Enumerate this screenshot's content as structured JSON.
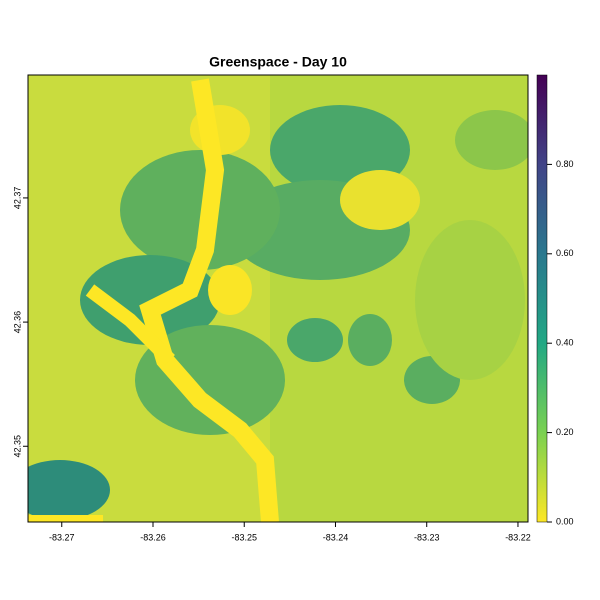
{
  "chart_data": {
    "type": "raster",
    "title": "Greenspace - Day 10",
    "xlim": [
      -83.2737,
      -83.2189
    ],
    "xticks": [
      -83.27,
      -83.26,
      -83.25,
      -83.24,
      -83.23,
      -83.22
    ],
    "ylim": [
      42.3439,
      42.3799
    ],
    "yticks": [
      42.35,
      42.36,
      42.37
    ],
    "colorbar": {
      "lim": [
        0,
        1.0
      ],
      "ticks": [
        {
          "value": 0,
          "label": "0.00"
        },
        {
          "value": 0.2,
          "label": "0.20"
        },
        {
          "value": 0.4,
          "label": "0.40"
        },
        {
          "value": 0.6,
          "label": "0.60"
        },
        {
          "value": 0.8,
          "label": "0.80"
        }
      ]
    }
  }
}
